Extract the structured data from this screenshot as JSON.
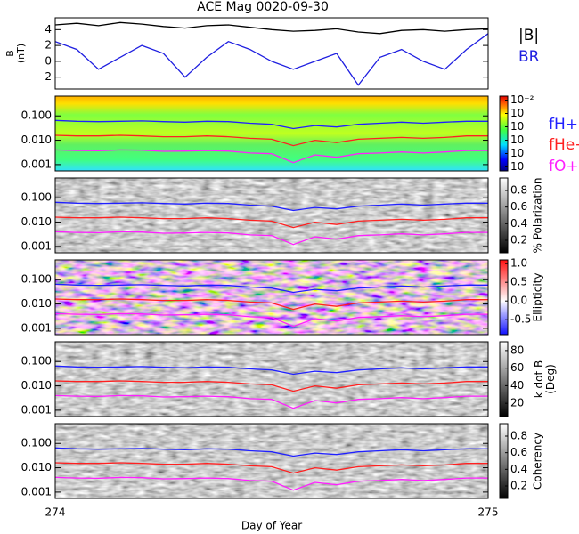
{
  "chart_data": [
    {
      "type": "line",
      "title": "ACE Mag 0020-09-30",
      "ylabel": [
        "B",
        "(nT)"
      ],
      "x": [
        274,
        274.05,
        274.1,
        274.15,
        274.2,
        274.25,
        274.3,
        274.35,
        274.4,
        274.45,
        274.5,
        274.55,
        274.6,
        274.65,
        274.7,
        274.75,
        274.8,
        274.85,
        274.9,
        274.95,
        275
      ],
      "xlim": [
        274,
        275
      ],
      "ylim": [
        -3.5,
        5.5
      ],
      "yticks": [
        4,
        2,
        0,
        -2
      ],
      "series": [
        {
          "name": "|B|",
          "color": "#000000",
          "values": [
            4.6,
            4.8,
            4.5,
            4.9,
            4.7,
            4.4,
            4.2,
            4.5,
            4.6,
            4.3,
            4.0,
            3.8,
            3.9,
            4.1,
            3.7,
            3.5,
            3.9,
            4.0,
            3.8,
            4.0,
            4.1
          ]
        },
        {
          "name": "BR",
          "color": "#1f1fe0",
          "values": [
            2.5,
            1.5,
            -1,
            0.5,
            2,
            1,
            -2,
            0.5,
            2.5,
            1.5,
            0,
            -1,
            0,
            1,
            -3,
            0.5,
            1.5,
            0,
            -1,
            1.5,
            3.5
          ]
        }
      ]
    },
    {
      "type": "spectrogram",
      "background": "jet",
      "ylim": [
        0.00055,
        0.65
      ],
      "log": true,
      "xlim": [
        274,
        275
      ],
      "yticks": [
        {
          "value": 0.1,
          "label": "0.100"
        },
        {
          "value": 0.01,
          "label": "0.010"
        },
        {
          "value": 0.001,
          "label": "0.001"
        }
      ],
      "x": [
        274,
        274.05,
        274.1,
        274.15,
        274.2,
        274.25,
        274.3,
        274.35,
        274.4,
        274.45,
        274.5,
        274.55,
        274.6,
        274.65,
        274.7,
        274.75,
        274.8,
        274.85,
        274.9,
        274.95,
        275
      ],
      "colorbar_label": [],
      "clim": [
        -7.3,
        -1.7
      ],
      "cticks": [
        {
          "value": -2,
          "label": "10⁻²"
        },
        {
          "value": -3,
          "label": "10"
        },
        {
          "value": -4,
          "label": "10"
        },
        {
          "value": -5,
          "label": "10"
        },
        {
          "value": -6,
          "label": "10"
        },
        {
          "value": -7,
          "label": "10"
        }
      ],
      "series": [
        {
          "name": "fH+",
          "color": "#2020ff",
          "values": [
            0.065,
            0.06,
            0.058,
            0.06,
            0.062,
            0.058,
            0.055,
            0.06,
            0.058,
            0.05,
            0.045,
            0.03,
            0.04,
            0.035,
            0.045,
            0.05,
            0.055,
            0.05,
            0.055,
            0.06,
            0.06
          ]
        },
        {
          "name": "fHe+",
          "color": "#ff2020",
          "values": [
            0.016,
            0.015,
            0.015,
            0.016,
            0.015,
            0.014,
            0.014,
            0.015,
            0.014,
            0.012,
            0.011,
            0.006,
            0.01,
            0.008,
            0.011,
            0.012,
            0.013,
            0.012,
            0.013,
            0.015,
            0.015
          ]
        },
        {
          "name": "fO+",
          "color": "#ff20ff",
          "values": [
            0.004,
            0.0038,
            0.0037,
            0.004,
            0.0039,
            0.0035,
            0.0036,
            0.0038,
            0.0036,
            0.003,
            0.0028,
            0.0012,
            0.0025,
            0.002,
            0.0028,
            0.003,
            0.0033,
            0.003,
            0.0033,
            0.0038,
            0.0038
          ]
        }
      ]
    },
    {
      "type": "spectrogram",
      "background": "gray",
      "ylim": [
        0.00055,
        0.65
      ],
      "log": true,
      "xlim": [
        274,
        275
      ],
      "yticks": [
        {
          "value": 0.1,
          "label": "0.100"
        },
        {
          "value": 0.01,
          "label": "0.010"
        },
        {
          "value": 0.001,
          "label": "0.001"
        }
      ],
      "x": [
        274,
        274.05,
        274.1,
        274.15,
        274.2,
        274.25,
        274.3,
        274.35,
        274.4,
        274.45,
        274.5,
        274.55,
        274.6,
        274.65,
        274.7,
        274.75,
        274.8,
        274.85,
        274.9,
        274.95,
        275
      ],
      "colorbar_label": [
        "% Polarization"
      ],
      "clim": [
        0.05,
        0.95
      ],
      "cticks": [
        0.8,
        0.6,
        0.4,
        0.2
      ],
      "series": [
        {
          "color": "#2020ff",
          "values": [
            0.065,
            0.06,
            0.058,
            0.06,
            0.062,
            0.058,
            0.055,
            0.06,
            0.058,
            0.05,
            0.045,
            0.03,
            0.04,
            0.035,
            0.045,
            0.05,
            0.055,
            0.05,
            0.055,
            0.06,
            0.06
          ]
        },
        {
          "color": "#ff2020",
          "values": [
            0.016,
            0.015,
            0.015,
            0.016,
            0.015,
            0.014,
            0.014,
            0.015,
            0.014,
            0.012,
            0.011,
            0.006,
            0.01,
            0.008,
            0.011,
            0.012,
            0.013,
            0.012,
            0.013,
            0.015,
            0.015
          ]
        },
        {
          "color": "#ff20ff",
          "values": [
            0.004,
            0.0038,
            0.0037,
            0.004,
            0.0039,
            0.0035,
            0.0036,
            0.0038,
            0.0036,
            0.003,
            0.0028,
            0.0012,
            0.0025,
            0.002,
            0.0028,
            0.003,
            0.0033,
            0.003,
            0.0033,
            0.0038,
            0.0038
          ]
        }
      ]
    },
    {
      "type": "spectrogram",
      "background": "bwr",
      "ylim": [
        0.00055,
        0.65
      ],
      "log": true,
      "xlim": [
        274,
        275
      ],
      "yticks": [
        {
          "value": 0.1,
          "label": "0.100"
        },
        {
          "value": 0.01,
          "label": "0.010"
        },
        {
          "value": 0.001,
          "label": "0.001"
        }
      ],
      "x": [
        274,
        274.05,
        274.1,
        274.15,
        274.2,
        274.25,
        274.3,
        274.35,
        274.4,
        274.45,
        274.5,
        274.55,
        274.6,
        274.65,
        274.7,
        274.75,
        274.8,
        274.85,
        274.9,
        274.95,
        275
      ],
      "colorbar_label": [
        "Ellipticity"
      ],
      "clim": [
        -0.9,
        1.1
      ],
      "cticks": [
        {
          "value": 1,
          "label": "1.0"
        },
        0.5,
        {
          "value": 0,
          "label": "0.0"
        },
        -0.5
      ],
      "series": [
        {
          "color": "#2020ff",
          "values": [
            0.065,
            0.06,
            0.058,
            0.06,
            0.062,
            0.058,
            0.055,
            0.06,
            0.058,
            0.05,
            0.045,
            0.03,
            0.04,
            0.035,
            0.045,
            0.05,
            0.055,
            0.05,
            0.055,
            0.06,
            0.06
          ]
        },
        {
          "color": "#ff2020",
          "values": [
            0.016,
            0.015,
            0.015,
            0.016,
            0.015,
            0.014,
            0.014,
            0.015,
            0.014,
            0.012,
            0.011,
            0.006,
            0.01,
            0.008,
            0.011,
            0.012,
            0.013,
            0.012,
            0.013,
            0.015,
            0.015
          ]
        },
        {
          "color": "#ff20ff",
          "values": [
            0.004,
            0.0038,
            0.0037,
            0.004,
            0.0039,
            0.0035,
            0.0036,
            0.0038,
            0.0036,
            0.003,
            0.0028,
            0.0012,
            0.0025,
            0.002,
            0.0028,
            0.003,
            0.0033,
            0.003,
            0.0033,
            0.0038,
            0.0038
          ]
        }
      ]
    },
    {
      "type": "spectrogram",
      "background": "gray",
      "ylim": [
        0.00055,
        0.65
      ],
      "log": true,
      "xlim": [
        274,
        275
      ],
      "yticks": [
        {
          "value": 0.1,
          "label": "0.100"
        },
        {
          "value": 0.01,
          "label": "0.010"
        },
        {
          "value": 0.001,
          "label": "0.001"
        }
      ],
      "x": [
        274,
        274.05,
        274.1,
        274.15,
        274.2,
        274.25,
        274.3,
        274.35,
        274.4,
        274.45,
        274.5,
        274.55,
        274.6,
        274.65,
        274.7,
        274.75,
        274.8,
        274.85,
        274.9,
        274.95,
        275
      ],
      "colorbar_label": [
        "k dot B",
        "(Deg)"
      ],
      "clim": [
        5,
        90
      ],
      "cticks": [
        80,
        60,
        40,
        20
      ],
      "series": [
        {
          "color": "#2020ff",
          "values": [
            0.065,
            0.06,
            0.058,
            0.06,
            0.062,
            0.058,
            0.055,
            0.06,
            0.058,
            0.05,
            0.045,
            0.03,
            0.04,
            0.035,
            0.045,
            0.05,
            0.055,
            0.05,
            0.055,
            0.06,
            0.06
          ]
        },
        {
          "color": "#ff2020",
          "values": [
            0.016,
            0.015,
            0.015,
            0.016,
            0.015,
            0.014,
            0.014,
            0.015,
            0.014,
            0.012,
            0.011,
            0.006,
            0.01,
            0.008,
            0.011,
            0.012,
            0.013,
            0.012,
            0.013,
            0.015,
            0.015
          ]
        },
        {
          "color": "#ff20ff",
          "values": [
            0.004,
            0.0038,
            0.0037,
            0.004,
            0.0039,
            0.0035,
            0.0036,
            0.0038,
            0.0036,
            0.003,
            0.0028,
            0.0012,
            0.0025,
            0.002,
            0.0028,
            0.003,
            0.0033,
            0.003,
            0.0033,
            0.0038,
            0.0038
          ]
        }
      ]
    },
    {
      "type": "spectrogram",
      "background": "gray",
      "ylim": [
        0.00055,
        0.65
      ],
      "log": true,
      "xlim": [
        274,
        275
      ],
      "yticks": [
        {
          "value": 0.1,
          "label": "0.100"
        },
        {
          "value": 0.01,
          "label": "0.010"
        },
        {
          "value": 0.001,
          "label": "0.001"
        }
      ],
      "x": [
        274,
        274.05,
        274.1,
        274.15,
        274.2,
        274.25,
        274.3,
        274.35,
        274.4,
        274.45,
        274.5,
        274.55,
        274.6,
        274.65,
        274.7,
        274.75,
        274.8,
        274.85,
        274.9,
        274.95,
        275
      ],
      "colorbar_label": [
        "Coherency"
      ],
      "clim": [
        0.05,
        0.95
      ],
      "cticks": [
        0.8,
        0.6,
        0.4,
        0.2
      ],
      "xticks": [
        274,
        275
      ],
      "xlabel": "Day of Year",
      "series": [
        {
          "color": "#2020ff",
          "values": [
            0.065,
            0.06,
            0.058,
            0.06,
            0.062,
            0.058,
            0.055,
            0.06,
            0.058,
            0.05,
            0.045,
            0.03,
            0.04,
            0.035,
            0.045,
            0.05,
            0.055,
            0.05,
            0.055,
            0.06,
            0.06
          ]
        },
        {
          "color": "#ff2020",
          "values": [
            0.016,
            0.015,
            0.015,
            0.016,
            0.015,
            0.014,
            0.014,
            0.015,
            0.014,
            0.012,
            0.011,
            0.006,
            0.01,
            0.008,
            0.011,
            0.012,
            0.013,
            0.012,
            0.013,
            0.015,
            0.015
          ]
        },
        {
          "color": "#ff20ff",
          "values": [
            0.004,
            0.0038,
            0.0037,
            0.004,
            0.0039,
            0.0035,
            0.0036,
            0.0038,
            0.0036,
            0.003,
            0.0028,
            0.0012,
            0.0025,
            0.002,
            0.0028,
            0.003,
            0.0033,
            0.003,
            0.0033,
            0.0038,
            0.0038
          ]
        }
      ]
    }
  ]
}
